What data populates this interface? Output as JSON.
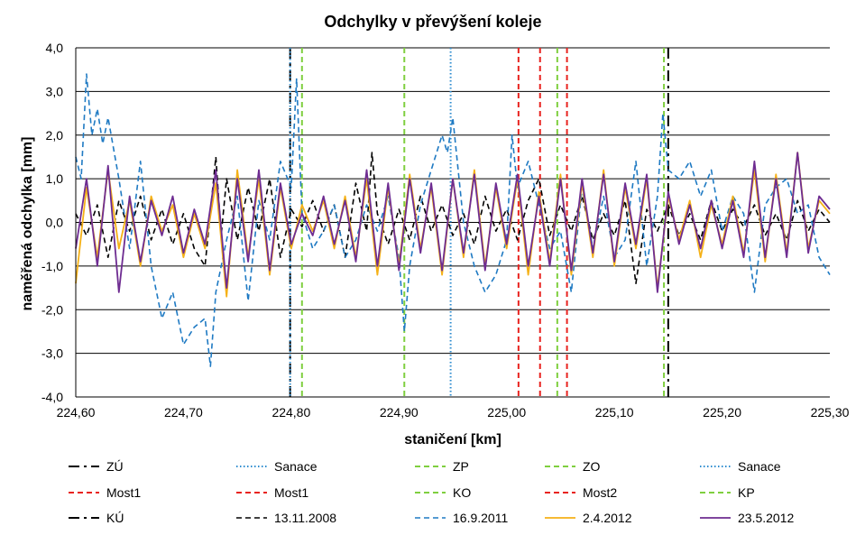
{
  "chart_data": {
    "type": "line",
    "title": "Odchylky v převýšení koleje",
    "xlabel": "staničení [km]",
    "ylabel": "naměřená odchylka [mm]",
    "xlim": [
      224.6,
      225.3
    ],
    "ylim": [
      -4.0,
      4.0
    ],
    "x_ticks": [
      "224,60",
      "224,70",
      "224,80",
      "224,90",
      "225,00",
      "225,10",
      "225,20",
      "225,30"
    ],
    "y_ticks": [
      "4,0",
      "3,0",
      "2,0",
      "1,0",
      "0,0",
      "-1,0",
      "-2,0",
      "-3,0",
      "-4,0"
    ],
    "grid": "horizontal",
    "legend_position": "bottom",
    "markers": [
      {
        "name": "ZÚ",
        "x": 224.799,
        "color": "#000000",
        "style": "longdash"
      },
      {
        "name": "Sanace",
        "x": 224.799,
        "color": "#2e8ccf",
        "style": "dotted"
      },
      {
        "name": "ZP",
        "x": 224.81,
        "color": "#7fcf3f",
        "style": "dashed"
      },
      {
        "name": "ZO",
        "x": 224.905,
        "color": "#7fcf3f",
        "style": "dashed"
      },
      {
        "name": "Sanace",
        "x": 224.948,
        "color": "#2e8ccf",
        "style": "dotted"
      },
      {
        "name": "Most1",
        "x": 225.011,
        "color": "#e8231f",
        "style": "dashed"
      },
      {
        "name": "Most1",
        "x": 225.031,
        "color": "#e8231f",
        "style": "dashed"
      },
      {
        "name": "KO",
        "x": 225.047,
        "color": "#7fcf3f",
        "style": "dashed"
      },
      {
        "name": "Most2",
        "x": 225.056,
        "color": "#e8231f",
        "style": "dashed"
      },
      {
        "name": "KP",
        "x": 225.146,
        "color": "#7fcf3f",
        "style": "dashed"
      },
      {
        "name": "KÚ",
        "x": 225.15,
        "color": "#000000",
        "style": "longdash"
      }
    ],
    "series": [
      {
        "name": "13.11.2008",
        "color": "#000000",
        "style": "dashed",
        "width": 1.6,
        "x": [
          224.6,
          224.61,
          224.62,
          224.63,
          224.64,
          224.65,
          224.66,
          224.67,
          224.68,
          224.69,
          224.7,
          224.71,
          224.72,
          224.73,
          224.735,
          224.74,
          224.75,
          224.76,
          224.77,
          224.78,
          224.79,
          224.8,
          224.81,
          224.82,
          224.83,
          224.84,
          224.85,
          224.86,
          224.87,
          224.875,
          224.88,
          224.89,
          224.9,
          224.91,
          224.92,
          224.93,
          224.94,
          224.95,
          224.96,
          224.97,
          224.98,
          224.99,
          225.0,
          225.01,
          225.02,
          225.03,
          225.04,
          225.05,
          225.06,
          225.07,
          225.08,
          225.09,
          225.1,
          225.11,
          225.12,
          225.13,
          225.14,
          225.15,
          225.16,
          225.17,
          225.18,
          225.19,
          225.2,
          225.21,
          225.22,
          225.23,
          225.24,
          225.25,
          225.26,
          225.27,
          225.28,
          225.29,
          225.3
        ],
        "values": [
          0.2,
          -0.3,
          0.4,
          -0.8,
          0.5,
          -0.2,
          0.6,
          -0.4,
          0.3,
          -0.5,
          0.2,
          -0.6,
          -1.0,
          1.5,
          -0.3,
          1.0,
          -0.4,
          0.8,
          -0.2,
          1.0,
          -0.8,
          0.3,
          -0.1,
          0.5,
          -0.2,
          0.4,
          -0.8,
          0.9,
          -0.2,
          1.6,
          0.2,
          -0.5,
          0.3,
          -0.4,
          0.6,
          -0.2,
          0.4,
          -0.3,
          0.2,
          -0.5,
          0.6,
          -0.2,
          0.3,
          -0.4,
          0.5,
          1.0,
          -0.3,
          0.4,
          -0.2,
          0.6,
          -0.4,
          0.2,
          -0.3,
          0.5,
          -1.4,
          0.3,
          -0.2,
          0.4,
          -0.3,
          0.2,
          -0.4,
          0.5,
          -0.2,
          0.3,
          -0.1,
          0.4,
          -0.3,
          0.2,
          -0.4,
          0.5,
          -0.2,
          0.3,
          0.0
        ]
      },
      {
        "name": "16.9.2011",
        "color": "#1f7ac3",
        "style": "dashed",
        "width": 1.6,
        "x": [
          224.6,
          224.605,
          224.61,
          224.615,
          224.62,
          224.625,
          224.63,
          224.64,
          224.65,
          224.66,
          224.67,
          224.68,
          224.69,
          224.7,
          224.71,
          224.72,
          224.725,
          224.73,
          224.74,
          224.75,
          224.76,
          224.77,
          224.78,
          224.79,
          224.8,
          224.805,
          224.81,
          224.82,
          224.83,
          224.84,
          224.85,
          224.86,
          224.87,
          224.88,
          224.89,
          224.9,
          224.905,
          224.91,
          224.92,
          224.93,
          224.94,
          224.945,
          224.95,
          224.96,
          224.97,
          224.98,
          224.99,
          225.0,
          225.005,
          225.01,
          225.02,
          225.03,
          225.04,
          225.05,
          225.06,
          225.07,
          225.08,
          225.09,
          225.1,
          225.11,
          225.12,
          225.13,
          225.14,
          225.145,
          225.15,
          225.16,
          225.17,
          225.18,
          225.19,
          225.2,
          225.21,
          225.22,
          225.23,
          225.24,
          225.25,
          225.26,
          225.27,
          225.28,
          225.29,
          225.3
        ],
        "values": [
          1.5,
          1.0,
          3.4,
          2.0,
          2.6,
          1.8,
          2.4,
          1.0,
          -0.6,
          1.4,
          -1.0,
          -2.2,
          -1.6,
          -2.8,
          -2.4,
          -2.2,
          -3.3,
          -1.6,
          -0.4,
          0.6,
          -1.8,
          0.5,
          -0.4,
          1.4,
          0.8,
          3.3,
          0.2,
          -0.6,
          -0.2,
          0.4,
          -0.8,
          -0.4,
          0.4,
          -0.2,
          0.6,
          -0.8,
          -2.5,
          -1.0,
          0.4,
          1.2,
          2.0,
          1.6,
          2.4,
          0.0,
          -1.0,
          -1.6,
          -1.2,
          -0.4,
          2.0,
          0.8,
          1.4,
          0.4,
          -0.6,
          -0.2,
          -1.6,
          0.8,
          -0.6,
          0.6,
          -0.8,
          -0.4,
          1.4,
          -1.0,
          0.6,
          2.5,
          1.2,
          1.0,
          1.4,
          0.6,
          1.2,
          -0.2,
          0.6,
          0.2,
          -1.6,
          0.4,
          0.8,
          1.0,
          0.2,
          0.4,
          -0.8,
          -1.2
        ]
      },
      {
        "name": "2.4.2012",
        "color": "#f5b117",
        "style": "solid",
        "width": 1.8,
        "x": [
          224.6,
          224.61,
          224.62,
          224.63,
          224.64,
          224.65,
          224.66,
          224.67,
          224.68,
          224.69,
          224.7,
          224.71,
          224.72,
          224.73,
          224.74,
          224.75,
          224.76,
          224.77,
          224.78,
          224.79,
          224.8,
          224.81,
          224.82,
          224.83,
          224.84,
          224.85,
          224.86,
          224.87,
          224.88,
          224.89,
          224.9,
          224.91,
          224.92,
          224.93,
          224.94,
          224.95,
          224.96,
          224.97,
          224.98,
          224.99,
          225.0,
          225.01,
          225.02,
          225.03,
          225.04,
          225.05,
          225.06,
          225.07,
          225.08,
          225.09,
          225.1,
          225.11,
          225.12,
          225.13,
          225.14,
          225.15,
          225.16,
          225.17,
          225.18,
          225.19,
          225.2,
          225.21,
          225.22,
          225.23,
          225.24,
          225.25,
          225.26,
          225.27,
          225.28,
          225.29,
          225.3
        ],
        "values": [
          -1.4,
          0.8,
          -0.8,
          1.2,
          -0.6,
          0.5,
          -1.0,
          0.6,
          -0.2,
          0.4,
          -0.8,
          0.2,
          -0.6,
          0.9,
          -1.7,
          1.2,
          -0.8,
          1.0,
          -1.2,
          0.8,
          -0.6,
          0.4,
          -0.2,
          0.5,
          -0.6,
          0.6,
          -0.8,
          1.0,
          -1.2,
          0.8,
          -1.0,
          1.1,
          -0.6,
          0.8,
          -1.2,
          1.0,
          -0.8,
          1.2,
          -1.0,
          0.8,
          -0.6,
          1.0,
          -1.2,
          0.7,
          -0.9,
          1.1,
          -1.2,
          0.9,
          -0.8,
          1.2,
          -1.0,
          0.8,
          -0.6,
          1.0,
          -1.5,
          0.6,
          -0.4,
          0.5,
          -0.8,
          0.4,
          -0.5,
          0.6,
          -0.7,
          1.2,
          -0.9,
          1.1,
          -0.7,
          1.6,
          -0.6,
          0.5,
          0.2
        ]
      },
      {
        "name": "23.5.2012",
        "color": "#6e2c91",
        "style": "solid",
        "width": 1.8,
        "x": [
          224.6,
          224.61,
          224.62,
          224.63,
          224.64,
          224.65,
          224.66,
          224.67,
          224.68,
          224.69,
          224.7,
          224.71,
          224.72,
          224.73,
          224.74,
          224.75,
          224.76,
          224.77,
          224.78,
          224.79,
          224.8,
          224.81,
          224.82,
          224.83,
          224.84,
          224.85,
          224.86,
          224.87,
          224.88,
          224.89,
          224.9,
          224.91,
          224.92,
          224.93,
          224.94,
          224.95,
          224.96,
          224.97,
          224.98,
          224.99,
          225.0,
          225.01,
          225.02,
          225.03,
          225.04,
          225.05,
          225.06,
          225.07,
          225.08,
          225.09,
          225.1,
          225.11,
          225.12,
          225.13,
          225.14,
          225.15,
          225.16,
          225.17,
          225.18,
          225.19,
          225.2,
          225.21,
          225.22,
          225.23,
          225.24,
          225.25,
          225.26,
          225.27,
          225.28,
          225.29,
          225.3
        ],
        "values": [
          -0.6,
          1.0,
          -1.0,
          1.3,
          -1.6,
          0.6,
          -0.9,
          0.5,
          -0.3,
          0.6,
          -0.7,
          0.3,
          -0.5,
          1.2,
          -1.5,
          1.0,
          -0.9,
          1.2,
          -1.1,
          0.9,
          -0.5,
          0.2,
          -0.3,
          0.6,
          -0.5,
          0.5,
          -0.9,
          1.2,
          -1.0,
          0.9,
          -1.1,
          1.0,
          -0.7,
          0.9,
          -1.1,
          1.0,
          -0.7,
          1.1,
          -1.1,
          0.9,
          -0.5,
          1.1,
          -1.0,
          0.6,
          -1.0,
          1.0,
          -1.1,
          1.0,
          -0.7,
          1.1,
          -0.9,
          0.9,
          -0.5,
          1.1,
          -1.6,
          0.7,
          -0.5,
          0.4,
          -0.6,
          0.5,
          -0.6,
          0.5,
          -0.8,
          1.4,
          -0.8,
          1.0,
          -0.8,
          1.6,
          -0.7,
          0.6,
          0.3
        ]
      }
    ],
    "legend": [
      [
        "ZÚ",
        "Sanace",
        "ZP",
        "ZO",
        "Sanace"
      ],
      [
        "Most1",
        "Most1",
        "KO",
        "Most2",
        "KP"
      ],
      [
        "KÚ",
        "13.11.2008",
        "16.9.2011",
        "2.4.2012",
        "23.5.2012"
      ]
    ]
  }
}
